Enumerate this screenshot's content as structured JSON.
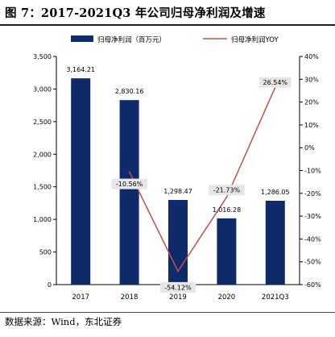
{
  "figure_title": "图 7：2017-2021Q3 年公司归母净利润及增速",
  "source_note": "数据来源：Wind，东北证券",
  "colors": {
    "bar": "#0f2a6b",
    "line": "#c0504d",
    "axis": "#000000",
    "label_bg": "#e6e6e6"
  },
  "chart_data": {
    "type": "bar+line",
    "categories": [
      "2017",
      "2018",
      "2019",
      "2020",
      "2021Q3"
    ],
    "series": [
      {
        "name": "归母净利润（百万元）",
        "type": "bar",
        "axis": "left",
        "values": [
          3164.21,
          2830.16,
          1298.47,
          1016.28,
          1286.05
        ],
        "labels": [
          "3,164.21",
          "2,830.16",
          "1,298.47",
          "1,016.28",
          "1,286.05"
        ]
      },
      {
        "name": "归母净利润YOY",
        "type": "line",
        "axis": "right",
        "values": [
          null,
          -10.56,
          -54.12,
          -21.73,
          26.54
        ],
        "labels": [
          "",
          "-10.56%",
          "-54.12%",
          "-21.73%",
          "26.54%"
        ]
      }
    ],
    "y_left": {
      "min": 0,
      "max": 3500,
      "step": 500,
      "ticks": [
        "0",
        "500",
        "1,000",
        "1,500",
        "2,000",
        "2,500",
        "3,000",
        "3,500"
      ]
    },
    "y_right": {
      "min": -60,
      "max": 40,
      "step": 10,
      "ticks": [
        "-60%",
        "-50%",
        "-40%",
        "-30%",
        "-20%",
        "-10%",
        "0%",
        "10%",
        "20%",
        "30%",
        "40%"
      ]
    },
    "legend_position": "top",
    "grid": false
  }
}
